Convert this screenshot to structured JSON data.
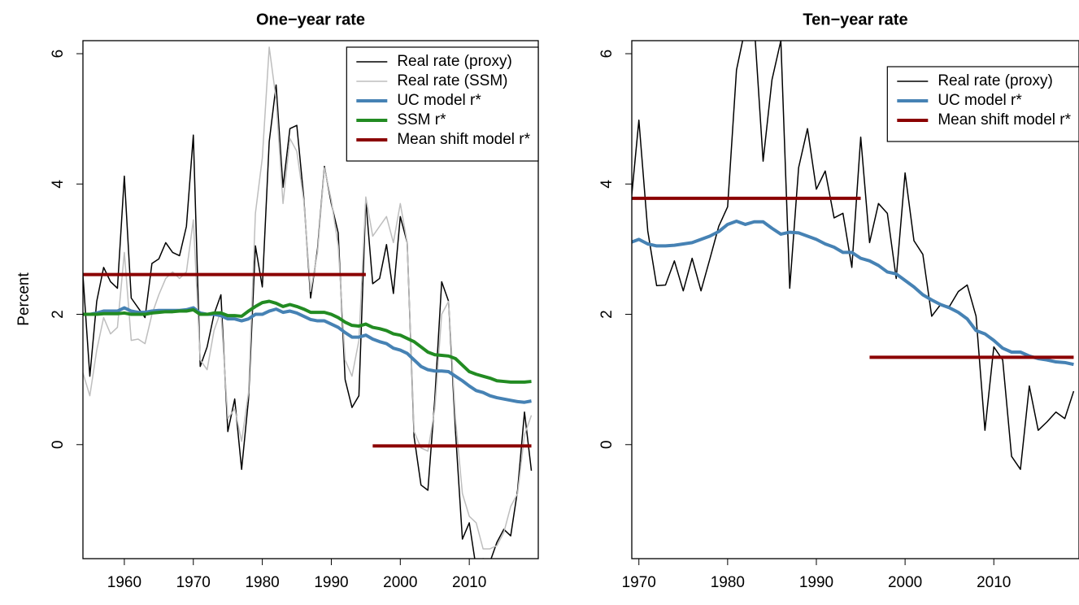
{
  "chart_data": [
    {
      "type": "line",
      "title": "One−year rate",
      "y_label": "Percent",
      "x": [
        1954,
        1955,
        1956,
        1957,
        1958,
        1959,
        1960,
        1961,
        1962,
        1963,
        1964,
        1965,
        1966,
        1967,
        1968,
        1969,
        1970,
        1971,
        1972,
        1973,
        1974,
        1975,
        1976,
        1977,
        1978,
        1979,
        1980,
        1981,
        1982,
        1983,
        1984,
        1985,
        1986,
        1987,
        1988,
        1989,
        1990,
        1991,
        1992,
        1993,
        1994,
        1995,
        1996,
        1997,
        1998,
        1999,
        2000,
        2001,
        2002,
        2003,
        2004,
        2005,
        2006,
        2007,
        2008,
        2009,
        2010,
        2011,
        2012,
        2013,
        2014,
        2015,
        2016,
        2017,
        2018,
        2019
      ],
      "xlim": [
        1954,
        2020
      ],
      "xticks": [
        1960,
        1970,
        1980,
        1990,
        2000,
        2010
      ],
      "ylim": [
        -1.75,
        6.2
      ],
      "yticks": [
        0,
        2,
        4,
        6
      ],
      "legend": "topright",
      "series": [
        {
          "name": "Real rate (proxy)",
          "color": "#000000",
          "width": 1.5,
          "values": [
            2.6,
            1.05,
            2.2,
            2.72,
            2.5,
            2.4,
            4.12,
            2.25,
            2.1,
            1.95,
            2.78,
            2.85,
            3.1,
            2.95,
            2.9,
            3.35,
            4.75,
            1.2,
            1.5,
            2.0,
            2.3,
            0.2,
            0.7,
            -0.38,
            0.7,
            3.05,
            2.42,
            4.65,
            5.52,
            3.95,
            4.85,
            4.9,
            3.8,
            2.25,
            3.0,
            4.27,
            3.7,
            3.25,
            1.0,
            0.57,
            0.75,
            3.75,
            2.47,
            2.55,
            3.07,
            2.32,
            3.5,
            3.1,
            0.12,
            -0.62,
            -0.7,
            0.7,
            2.5,
            2.2,
            0.2,
            -1.45,
            -1.2,
            -1.9,
            -1.75,
            -1.8,
            -1.5,
            -1.3,
            -1.4,
            -0.7,
            0.5,
            -0.4
          ]
        },
        {
          "name": "Real rate (SSM)",
          "color": "#bebebe",
          "width": 1.5,
          "values": [
            1.1,
            0.75,
            1.45,
            1.95,
            1.7,
            1.8,
            2.95,
            1.6,
            1.62,
            1.55,
            2.0,
            2.3,
            2.55,
            2.65,
            2.55,
            2.65,
            3.45,
            1.3,
            1.15,
            1.75,
            2.05,
            0.4,
            0.55,
            0.05,
            0.8,
            3.55,
            4.4,
            6.1,
            5.3,
            3.7,
            4.7,
            4.5,
            3.75,
            2.35,
            2.95,
            4.25,
            3.75,
            3.05,
            1.3,
            1.05,
            1.6,
            3.8,
            3.2,
            3.35,
            3.5,
            3.1,
            3.7,
            3.1,
            0.2,
            -0.05,
            -0.1,
            0.55,
            2.0,
            2.2,
            0.4,
            -0.75,
            -1.1,
            -1.2,
            -1.6,
            -1.6,
            -1.55,
            -1.35,
            -0.95,
            -0.75,
            0.15,
            0.45
          ]
        },
        {
          "name": "UC model r*",
          "color": "#4682b4",
          "width": 4,
          "values": [
            2.0,
            2.0,
            2.02,
            2.05,
            2.05,
            2.05,
            2.1,
            2.05,
            2.03,
            2.03,
            2.05,
            2.06,
            2.06,
            2.06,
            2.06,
            2.07,
            2.1,
            2.02,
            2.0,
            2.0,
            1.98,
            1.93,
            1.93,
            1.9,
            1.93,
            2.0,
            2.0,
            2.05,
            2.08,
            2.03,
            2.05,
            2.02,
            1.97,
            1.92,
            1.9,
            1.9,
            1.85,
            1.8,
            1.72,
            1.65,
            1.65,
            1.68,
            1.62,
            1.58,
            1.55,
            1.48,
            1.45,
            1.4,
            1.3,
            1.2,
            1.15,
            1.13,
            1.13,
            1.12,
            1.05,
            0.98,
            0.9,
            0.83,
            0.8,
            0.75,
            0.72,
            0.7,
            0.68,
            0.66,
            0.65,
            0.67
          ]
        },
        {
          "name": "SSM r*",
          "color": "#228b22",
          "width": 4,
          "values": [
            2.0,
            2.0,
            2.0,
            2.01,
            2.01,
            2.01,
            2.02,
            2.0,
            2.0,
            2.0,
            2.02,
            2.03,
            2.04,
            2.04,
            2.05,
            2.05,
            2.07,
            2.0,
            2.0,
            2.02,
            2.02,
            1.98,
            1.98,
            1.97,
            2.05,
            2.12,
            2.18,
            2.2,
            2.17,
            2.12,
            2.15,
            2.12,
            2.08,
            2.03,
            2.03,
            2.03,
            2.0,
            1.95,
            1.88,
            1.83,
            1.82,
            1.85,
            1.8,
            1.78,
            1.75,
            1.7,
            1.68,
            1.63,
            1.58,
            1.5,
            1.42,
            1.38,
            1.37,
            1.36,
            1.32,
            1.22,
            1.12,
            1.08,
            1.05,
            1.02,
            0.98,
            0.97,
            0.96,
            0.96,
            0.96,
            0.97
          ]
        },
        {
          "name": "Mean shift model r*",
          "color": "#8b0000",
          "width": 4,
          "x": [
            1954,
            1995,
            1995,
            1996,
            2019
          ],
          "values": [
            2.61,
            2.61,
            null,
            -0.02,
            -0.02
          ]
        }
      ]
    },
    {
      "type": "line",
      "title": "Ten−year rate",
      "x": [
        1969,
        1970,
        1971,
        1972,
        1973,
        1974,
        1975,
        1976,
        1977,
        1978,
        1979,
        1980,
        1981,
        1982,
        1983,
        1984,
        1985,
        1986,
        1987,
        1988,
        1989,
        1990,
        1991,
        1992,
        1993,
        1994,
        1995,
        1996,
        1997,
        1998,
        1999,
        2000,
        2001,
        2002,
        2003,
        2004,
        2005,
        2006,
        2007,
        2008,
        2009,
        2010,
        2011,
        2012,
        2013,
        2014,
        2015,
        2016,
        2017,
        2018,
        2019
      ],
      "xlim": [
        1969.2,
        2019.6
      ],
      "xticks": [
        1970,
        1980,
        1990,
        2000,
        2010
      ],
      "ylim": [
        -1.75,
        6.2
      ],
      "yticks": [
        0,
        2,
        4,
        6
      ],
      "legend": "topright",
      "series": [
        {
          "name": "Real rate (proxy)",
          "color": "#000000",
          "width": 1.5,
          "values": [
            3.55,
            4.98,
            3.28,
            2.44,
            2.45,
            2.82,
            2.36,
            2.86,
            2.36,
            2.85,
            3.35,
            3.65,
            5.75,
            6.4,
            6.45,
            4.35,
            5.6,
            6.2,
            2.4,
            4.25,
            4.85,
            3.92,
            4.2,
            3.48,
            3.55,
            2.72,
            4.72,
            3.1,
            3.7,
            3.55,
            2.55,
            4.17,
            3.13,
            2.92,
            1.97,
            2.15,
            2.12,
            2.35,
            2.45,
            1.97,
            0.22,
            1.5,
            1.3,
            -0.18,
            -0.38,
            0.9,
            0.22,
            0.35,
            0.5,
            0.4,
            0.82
          ]
        },
        {
          "name": "UC model r*",
          "color": "#4682b4",
          "width": 4,
          "values": [
            3.1,
            3.15,
            3.08,
            3.05,
            3.05,
            3.06,
            3.08,
            3.1,
            3.15,
            3.2,
            3.27,
            3.38,
            3.43,
            3.38,
            3.42,
            3.42,
            3.32,
            3.23,
            3.26,
            3.25,
            3.2,
            3.15,
            3.08,
            3.03,
            2.95,
            2.95,
            2.86,
            2.82,
            2.75,
            2.65,
            2.62,
            2.52,
            2.42,
            2.3,
            2.22,
            2.15,
            2.1,
            2.03,
            1.93,
            1.75,
            1.7,
            1.6,
            1.48,
            1.42,
            1.42,
            1.36,
            1.32,
            1.3,
            1.27,
            1.26,
            1.23
          ]
        },
        {
          "name": "Mean shift model r*",
          "color": "#8b0000",
          "width": 4,
          "x": [
            1969,
            1995,
            1995,
            1996,
            2019
          ],
          "values": [
            3.78,
            3.78,
            null,
            1.34,
            1.34
          ]
        }
      ]
    }
  ]
}
